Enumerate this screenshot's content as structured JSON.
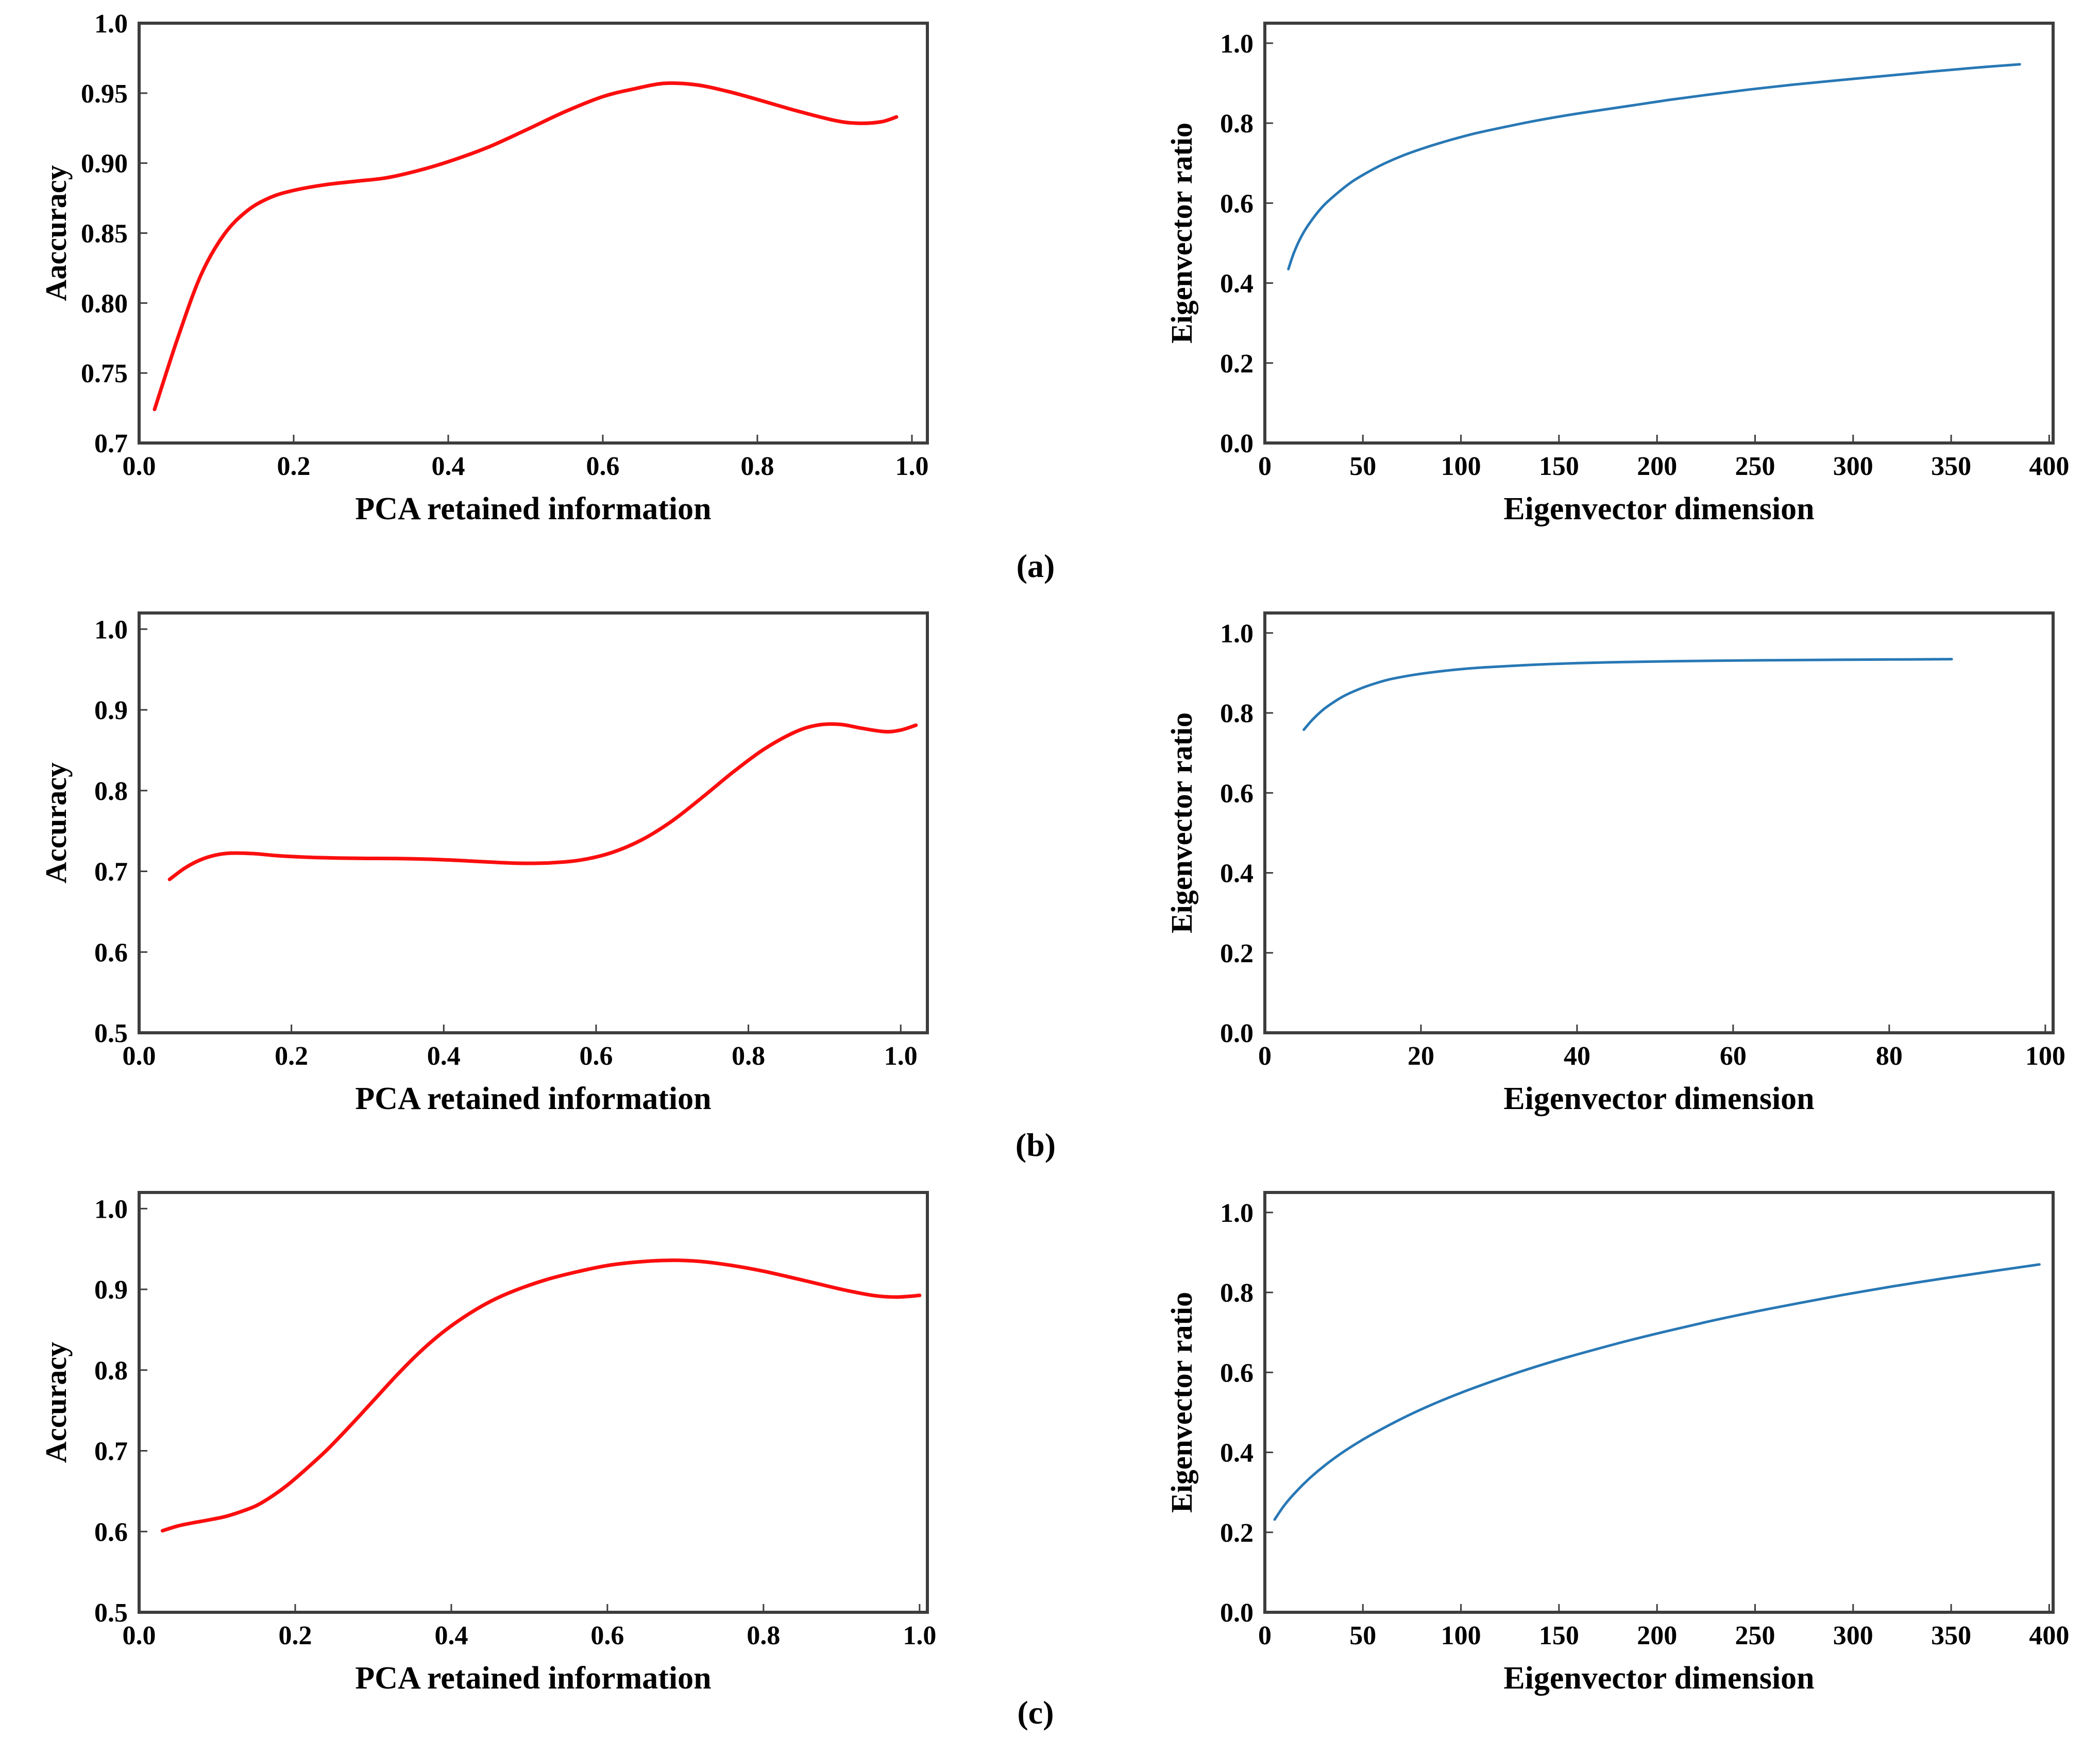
{
  "panel_labels": {
    "a": "(a)",
    "b": "(b)",
    "c": "(c)"
  },
  "colors": {
    "background": "#ffffff",
    "axis": "#3d3d3d",
    "text": "#000000",
    "accuracy_line": "#fb0e0e",
    "eigen_line": "#2878b5"
  },
  "chart_data": [
    {
      "id": "chart-a-left",
      "type": "line",
      "panel": "a",
      "title": "",
      "xlabel": "PCA retained information",
      "ylabel": "Aaccuracy",
      "xlim": [
        0,
        1.02
      ],
      "ylim": [
        0.7,
        1.0
      ],
      "xtick_values": [
        0,
        0.2,
        0.4,
        0.6,
        0.8,
        1.0
      ],
      "xtick_labels": [
        "0.0",
        "0.2",
        "0.4",
        "0.6",
        "0.8",
        "1.0"
      ],
      "ytick_values": [
        0.7,
        0.75,
        0.8,
        0.85,
        0.9,
        0.95,
        1.0
      ],
      "ytick_labels": [
        "0.7",
        "0.75",
        "0.80",
        "0.85",
        "0.90",
        "0.95",
        "1.0"
      ],
      "grid": false,
      "legend": null,
      "line_color": "#fb0e0e",
      "line_width": 7,
      "points": [
        [
          0.02,
          0.724
        ],
        [
          0.05,
          0.775
        ],
        [
          0.08,
          0.82
        ],
        [
          0.11,
          0.849
        ],
        [
          0.14,
          0.866
        ],
        [
          0.17,
          0.8755
        ],
        [
          0.2,
          0.8805
        ],
        [
          0.24,
          0.8845
        ],
        [
          0.28,
          0.887
        ],
        [
          0.32,
          0.8895
        ],
        [
          0.36,
          0.8945
        ],
        [
          0.4,
          0.901
        ],
        [
          0.45,
          0.911
        ],
        [
          0.5,
          0.9235
        ],
        [
          0.55,
          0.9365
        ],
        [
          0.6,
          0.9475
        ],
        [
          0.64,
          0.953
        ],
        [
          0.68,
          0.957
        ],
        [
          0.72,
          0.956
        ],
        [
          0.76,
          0.9515
        ],
        [
          0.8,
          0.9455
        ],
        [
          0.85,
          0.9375
        ],
        [
          0.9,
          0.9305
        ],
        [
          0.93,
          0.9285
        ],
        [
          0.96,
          0.9295
        ],
        [
          0.98,
          0.933
        ]
      ]
    },
    {
      "id": "chart-a-right",
      "type": "line",
      "panel": "a",
      "title": "",
      "xlabel": "Eigenvector dimension",
      "ylabel": "Eigenvector ratio",
      "xlim": [
        0,
        402
      ],
      "ylim": [
        0,
        1.05
      ],
      "xtick_values": [
        0,
        50,
        100,
        150,
        200,
        250,
        300,
        350,
        400
      ],
      "xtick_labels": [
        "0",
        "50",
        "100",
        "150",
        "200",
        "250",
        "300",
        "350",
        "400"
      ],
      "ytick_values": [
        0,
        0.2,
        0.4,
        0.6,
        0.8,
        1.0
      ],
      "ytick_labels": [
        "0.0",
        "0.2",
        "0.4",
        "0.6",
        "0.8",
        "1.0"
      ],
      "grid": false,
      "legend": null,
      "line_color": "#2878b5",
      "line_width": 5,
      "points": [
        [
          12,
          0.435
        ],
        [
          15,
          0.478
        ],
        [
          19,
          0.52
        ],
        [
          24,
          0.558
        ],
        [
          30,
          0.594
        ],
        [
          37,
          0.625
        ],
        [
          44,
          0.652
        ],
        [
          52,
          0.676
        ],
        [
          61,
          0.699
        ],
        [
          71,
          0.72
        ],
        [
          82,
          0.739
        ],
        [
          94,
          0.757
        ],
        [
          107,
          0.774
        ],
        [
          121,
          0.789
        ],
        [
          136,
          0.804
        ],
        [
          152,
          0.818
        ],
        [
          169,
          0.831
        ],
        [
          187,
          0.844
        ],
        [
          206,
          0.858
        ],
        [
          226,
          0.871
        ],
        [
          247,
          0.884
        ],
        [
          269,
          0.896
        ],
        [
          292,
          0.907
        ],
        [
          316,
          0.918
        ],
        [
          340,
          0.929
        ],
        [
          363,
          0.939
        ],
        [
          385,
          0.947
        ]
      ]
    },
    {
      "id": "chart-b-left",
      "type": "line",
      "panel": "b",
      "title": "",
      "xlabel": "PCA retained information",
      "ylabel": "Accuracy",
      "xlim": [
        0,
        1.035
      ],
      "ylim": [
        0.5,
        1.02
      ],
      "xtick_values": [
        0,
        0.2,
        0.4,
        0.6,
        0.8,
        1.0
      ],
      "xtick_labels": [
        "0.0",
        "0.2",
        "0.4",
        "0.6",
        "0.8",
        "1.0"
      ],
      "ytick_values": [
        0.5,
        0.6,
        0.7,
        0.8,
        0.9,
        1.0
      ],
      "ytick_labels": [
        "0.5",
        "0.6",
        "0.7",
        "0.8",
        "0.9",
        "1.0"
      ],
      "grid": false,
      "legend": null,
      "line_color": "#fb0e0e",
      "line_width": 7,
      "points": [
        [
          0.04,
          0.69
        ],
        [
          0.06,
          0.704
        ],
        [
          0.08,
          0.714
        ],
        [
          0.1,
          0.72
        ],
        [
          0.12,
          0.7225
        ],
        [
          0.15,
          0.722
        ],
        [
          0.18,
          0.7195
        ],
        [
          0.22,
          0.7175
        ],
        [
          0.26,
          0.7165
        ],
        [
          0.3,
          0.716
        ],
        [
          0.34,
          0.7158
        ],
        [
          0.38,
          0.715
        ],
        [
          0.42,
          0.7135
        ],
        [
          0.46,
          0.7115
        ],
        [
          0.5,
          0.71
        ],
        [
          0.54,
          0.7105
        ],
        [
          0.58,
          0.714
        ],
        [
          0.62,
          0.723
        ],
        [
          0.66,
          0.739
        ],
        [
          0.7,
          0.7625
        ],
        [
          0.74,
          0.792
        ],
        [
          0.78,
          0.823
        ],
        [
          0.82,
          0.851
        ],
        [
          0.86,
          0.872
        ],
        [
          0.89,
          0.881
        ],
        [
          0.92,
          0.882
        ],
        [
          0.95,
          0.877
        ],
        [
          0.98,
          0.873
        ],
        [
          1.0,
          0.875
        ],
        [
          1.02,
          0.881
        ]
      ]
    },
    {
      "id": "chart-b-right",
      "type": "line",
      "panel": "b",
      "title": "",
      "xlabel": "Eigenvector dimension",
      "ylabel": "Eigenvector ratio",
      "xlim": [
        0,
        101
      ],
      "ylim": [
        0,
        1.05
      ],
      "xtick_values": [
        0,
        20,
        40,
        60,
        80,
        100
      ],
      "xtick_labels": [
        "0",
        "20",
        "40",
        "60",
        "80",
        "100"
      ],
      "ytick_values": [
        0,
        0.2,
        0.4,
        0.6,
        0.8,
        1.0
      ],
      "ytick_labels": [
        "0.0",
        "0.2",
        "0.4",
        "0.6",
        "0.8",
        "1.0"
      ],
      "grid": false,
      "legend": null,
      "line_color": "#2878b5",
      "line_width": 5,
      "points": [
        [
          5,
          0.758
        ],
        [
          6,
          0.781
        ],
        [
          7,
          0.8
        ],
        [
          8,
          0.816
        ],
        [
          10,
          0.841
        ],
        [
          12,
          0.859
        ],
        [
          14,
          0.873
        ],
        [
          16,
          0.884
        ],
        [
          19,
          0.895
        ],
        [
          22,
          0.903
        ],
        [
          26,
          0.911
        ],
        [
          30,
          0.916
        ],
        [
          35,
          0.921
        ],
        [
          40,
          0.9245
        ],
        [
          46,
          0.9272
        ],
        [
          52,
          0.9292
        ],
        [
          58,
          0.9307
        ],
        [
          65,
          0.9318
        ],
        [
          72,
          0.9328
        ],
        [
          80,
          0.9337
        ],
        [
          88,
          0.9345
        ]
      ]
    },
    {
      "id": "chart-c-left",
      "type": "line",
      "panel": "c",
      "title": "",
      "xlabel": "PCA retained information",
      "ylabel": "Accuracy",
      "xlim": [
        0,
        1.01
      ],
      "ylim": [
        0.5,
        1.02
      ],
      "xtick_values": [
        0,
        0.2,
        0.4,
        0.6,
        0.8,
        1.0
      ],
      "xtick_labels": [
        "0.0",
        "0.2",
        "0.4",
        "0.6",
        "0.8",
        "1.0"
      ],
      "ytick_values": [
        0.5,
        0.6,
        0.7,
        0.8,
        0.9,
        1.0
      ],
      "ytick_labels": [
        "0.5",
        "0.6",
        "0.7",
        "0.8",
        "0.9",
        "1.0"
      ],
      "grid": false,
      "legend": null,
      "line_color": "#fb0e0e",
      "line_width": 7,
      "points": [
        [
          0.03,
          0.601
        ],
        [
          0.05,
          0.607
        ],
        [
          0.07,
          0.611
        ],
        [
          0.09,
          0.6145
        ],
        [
          0.11,
          0.6185
        ],
        [
          0.13,
          0.6245
        ],
        [
          0.15,
          0.632
        ],
        [
          0.17,
          0.6435
        ],
        [
          0.19,
          0.6575
        ],
        [
          0.21,
          0.674
        ],
        [
          0.24,
          0.7005
        ],
        [
          0.27,
          0.7305
        ],
        [
          0.3,
          0.762
        ],
        [
          0.33,
          0.7935
        ],
        [
          0.36,
          0.8225
        ],
        [
          0.39,
          0.8475
        ],
        [
          0.42,
          0.868
        ],
        [
          0.45,
          0.885
        ],
        [
          0.48,
          0.898
        ],
        [
          0.52,
          0.9115
        ],
        [
          0.56,
          0.9215
        ],
        [
          0.6,
          0.9295
        ],
        [
          0.64,
          0.934
        ],
        [
          0.68,
          0.936
        ],
        [
          0.72,
          0.9345
        ],
        [
          0.76,
          0.9295
        ],
        [
          0.8,
          0.9225
        ],
        [
          0.85,
          0.9115
        ],
        [
          0.9,
          0.9
        ],
        [
          0.94,
          0.8925
        ],
        [
          0.97,
          0.8905
        ],
        [
          1.0,
          0.8925
        ]
      ]
    },
    {
      "id": "chart-c-right",
      "type": "line",
      "panel": "c",
      "title": "",
      "xlabel": "Eigenvector dimension",
      "ylabel": "Eigenvector ratio",
      "xlim": [
        0,
        402
      ],
      "ylim": [
        0,
        1.05
      ],
      "xtick_values": [
        0,
        50,
        100,
        150,
        200,
        250,
        300,
        350,
        400
      ],
      "xtick_labels": [
        "0",
        "50",
        "100",
        "150",
        "200",
        "250",
        "300",
        "350",
        "400"
      ],
      "ytick_values": [
        0,
        0.2,
        0.4,
        0.6,
        0.8,
        1.0
      ],
      "ytick_labels": [
        "0.0",
        "0.2",
        "0.4",
        "0.6",
        "0.8",
        "1.0"
      ],
      "grid": false,
      "legend": null,
      "line_color": "#2878b5",
      "line_width": 5,
      "points": [
        [
          5,
          0.232
        ],
        [
          10,
          0.268
        ],
        [
          16,
          0.302
        ],
        [
          23,
          0.336
        ],
        [
          31,
          0.369
        ],
        [
          40,
          0.401
        ],
        [
          50,
          0.432
        ],
        [
          61,
          0.462
        ],
        [
          73,
          0.492
        ],
        [
          86,
          0.521
        ],
        [
          100,
          0.549
        ],
        [
          115,
          0.576
        ],
        [
          131,
          0.603
        ],
        [
          148,
          0.629
        ],
        [
          166,
          0.654
        ],
        [
          185,
          0.679
        ],
        [
          205,
          0.703
        ],
        [
          226,
          0.727
        ],
        [
          248,
          0.75
        ],
        [
          271,
          0.772
        ],
        [
          295,
          0.794
        ],
        [
          320,
          0.815
        ],
        [
          346,
          0.835
        ],
        [
          371,
          0.853
        ],
        [
          395,
          0.87
        ]
      ]
    }
  ]
}
